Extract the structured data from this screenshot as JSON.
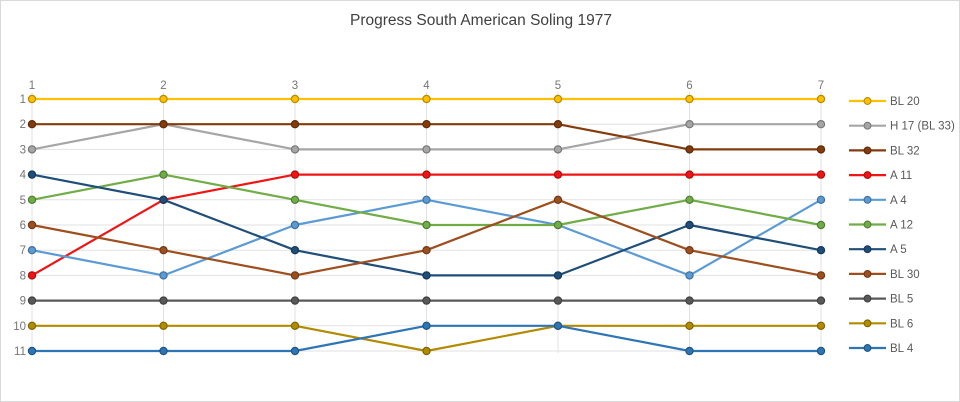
{
  "chart_data": {
    "type": "line",
    "subtype": "bump-rank-progress",
    "title": "Progress South American Soling 1977",
    "xlabel": "",
    "ylabel": "",
    "x_categories": [
      "1",
      "2",
      "3",
      "4",
      "5",
      "6",
      "7"
    ],
    "y_ticks": [
      "1",
      "2",
      "3",
      "4",
      "5",
      "6",
      "7",
      "8",
      "9",
      "10",
      "11"
    ],
    "y_axis_note": "rank 1 at top, rank 11 at bottom (reversed axis)",
    "grid": "horizontal and vertical light gray gridlines",
    "legend_position": "right",
    "series": [
      {
        "name": "BL 20",
        "color": "#FFC000",
        "values": [
          1,
          1,
          1,
          1,
          1,
          1,
          1
        ]
      },
      {
        "name": "H 17 (BL 33)",
        "color": "#A6A6A6",
        "values": [
          3,
          2,
          3,
          3,
          3,
          2,
          2
        ]
      },
      {
        "name": "BL 32",
        "color": "#843C0C",
        "values": [
          2,
          2,
          2,
          2,
          2,
          3,
          3
        ]
      },
      {
        "name": "A 11",
        "color": "#F01414",
        "values": [
          8,
          5,
          4,
          4,
          4,
          4,
          4
        ]
      },
      {
        "name": "A 4",
        "color": "#5B9BD5",
        "values": [
          7,
          8,
          6,
          5,
          6,
          8,
          5
        ]
      },
      {
        "name": "A 12",
        "color": "#70AD47",
        "values": [
          5,
          4,
          5,
          6,
          6,
          5,
          6
        ]
      },
      {
        "name": "A 5",
        "color": "#1F4E79",
        "values": [
          4,
          5,
          7,
          8,
          8,
          6,
          7
        ]
      },
      {
        "name": "BL 30",
        "color": "#9E4F1E",
        "values": [
          6,
          7,
          8,
          7,
          5,
          7,
          8
        ]
      },
      {
        "name": "BL 5",
        "color": "#595959",
        "values": [
          9,
          9,
          9,
          9,
          9,
          9,
          9
        ]
      },
      {
        "name": "BL 6",
        "color": "#B28B00",
        "values": [
          10,
          10,
          10,
          11,
          10,
          10,
          10
        ]
      },
      {
        "name": "BL 4",
        "color": "#2E75B6",
        "values": [
          11,
          11,
          11,
          10,
          10,
          11,
          11
        ]
      }
    ],
    "colors": {
      "title_text": "#404040",
      "axis_label_text": "#757575",
      "legend_text": "#595959",
      "gridline": "#e2e2e2",
      "card_border": "#d9d9d9",
      "background": "#ffffff"
    }
  }
}
